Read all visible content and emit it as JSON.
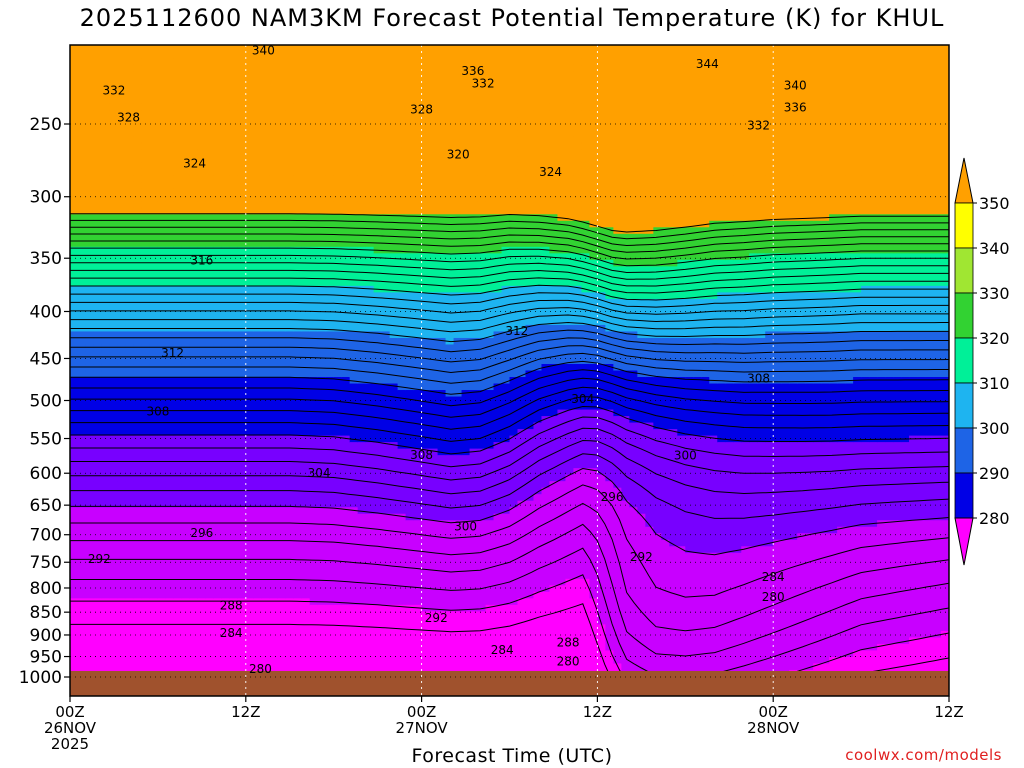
{
  "chart_data": {
    "type": "contour",
    "title": "2025112600 NAM3KM Forecast Potential Temperature (K) for KHUL",
    "xlabel": "Forecast Time (UTC)",
    "ylabel": "",
    "x_ticks": [
      {
        "hour": 0,
        "labels": [
          "00Z",
          "26NOV",
          "2025"
        ]
      },
      {
        "hour": 12,
        "labels": [
          "12Z"
        ]
      },
      {
        "hour": 24,
        "labels": [
          "00Z",
          "27NOV"
        ]
      },
      {
        "hour": 36,
        "labels": [
          "12Z"
        ]
      },
      {
        "hour": 48,
        "labels": [
          "00Z",
          "28NOV"
        ]
      },
      {
        "hour": 60,
        "labels": [
          "12Z"
        ]
      }
    ],
    "xlim": [
      0,
      60
    ],
    "y_ticks": [
      250,
      300,
      350,
      400,
      450,
      500,
      550,
      600,
      650,
      700,
      750,
      800,
      850,
      900,
      950,
      1000
    ],
    "ylim": [
      200,
      1013
    ],
    "y_scale": "log-pressure",
    "y_units": "hPa",
    "colorbar": {
      "levels": [
        280,
        290,
        300,
        310,
        320,
        330,
        340,
        350
      ],
      "colors": [
        "#ff00ff",
        "#c800ff",
        "#7800ff",
        "#0000e6",
        "#1e64e6",
        "#1eb4f0",
        "#00f098",
        "#32d232",
        "#a0e632",
        "#ffff00",
        "#ffa000"
      ]
    },
    "contour_interval_K": 2,
    "contour_labels": [
      {
        "value": "340",
        "hour": 13.2,
        "p": 208
      },
      {
        "value": "336",
        "hour": 27.5,
        "p": 219
      },
      {
        "value": "332",
        "hour": 28.2,
        "p": 226
      },
      {
        "value": "332",
        "hour": 3.0,
        "p": 230
      },
      {
        "value": "328",
        "hour": 4.0,
        "p": 246
      },
      {
        "value": "328",
        "hour": 24.0,
        "p": 241
      },
      {
        "value": "324",
        "hour": 8.5,
        "p": 276
      },
      {
        "value": "320",
        "hour": 26.5,
        "p": 270
      },
      {
        "value": "324",
        "hour": 32.8,
        "p": 282
      },
      {
        "value": "344",
        "hour": 43.5,
        "p": 215
      },
      {
        "value": "340",
        "hour": 49.5,
        "p": 227
      },
      {
        "value": "336",
        "hour": 49.5,
        "p": 240
      },
      {
        "value": "332",
        "hour": 47.0,
        "p": 251
      },
      {
        "value": "316",
        "hour": 9.0,
        "p": 352
      },
      {
        "value": "312",
        "hour": 7.0,
        "p": 444
      },
      {
        "value": "312",
        "hour": 30.5,
        "p": 420
      },
      {
        "value": "308",
        "hour": 6.0,
        "p": 514
      },
      {
        "value": "304",
        "hour": 35.0,
        "p": 498
      },
      {
        "value": "308",
        "hour": 47.0,
        "p": 473
      },
      {
        "value": "308",
        "hour": 24.0,
        "p": 573
      },
      {
        "value": "304",
        "hour": 17.0,
        "p": 600
      },
      {
        "value": "300",
        "hour": 42.0,
        "p": 574
      },
      {
        "value": "296",
        "hour": 37.0,
        "p": 637
      },
      {
        "value": "300",
        "hour": 27.0,
        "p": 686
      },
      {
        "value": "296",
        "hour": 9.0,
        "p": 697
      },
      {
        "value": "292",
        "hour": 2.0,
        "p": 744
      },
      {
        "value": "292",
        "hour": 39.0,
        "p": 740
      },
      {
        "value": "284",
        "hour": 48.0,
        "p": 778
      },
      {
        "value": "288",
        "hour": 11.0,
        "p": 836
      },
      {
        "value": "280",
        "hour": 48.0,
        "p": 818
      },
      {
        "value": "292",
        "hour": 25.0,
        "p": 862
      },
      {
        "value": "284",
        "hour": 11.0,
        "p": 896
      },
      {
        "value": "288",
        "hour": 34.0,
        "p": 917
      },
      {
        "value": "284",
        "hour": 29.5,
        "p": 934
      },
      {
        "value": "280",
        "hour": 34.0,
        "p": 962
      },
      {
        "value": "280",
        "hour": 13.0,
        "p": 980
      }
    ]
  },
  "credit": "coolwx.com/models"
}
